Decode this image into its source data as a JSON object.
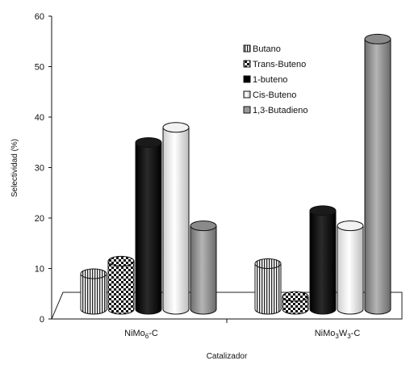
{
  "chart_data": {
    "type": "bar",
    "style": "3d-cylinder",
    "xlabel": "Catalizador",
    "ylabel": "Selectividad (%)",
    "ylim": [
      0,
      60
    ],
    "yticks": [
      "0",
      "10",
      "20",
      "30",
      "40",
      "50",
      "60"
    ],
    "grid": false,
    "legend_placement": "top-right",
    "categories": [
      {
        "main": "NiMo",
        "sub1": "6",
        "mid": "-C",
        "sub2": "",
        "tail": ""
      },
      {
        "main": "NiMo",
        "sub1": "3",
        "mid": "W",
        "sub2": "3",
        "tail": "-C"
      }
    ],
    "series": [
      {
        "name": "Butano",
        "pattern": "vertical-lines",
        "values": [
          8,
          10
        ]
      },
      {
        "name": "Trans-Buteno",
        "pattern": "checker",
        "values": [
          10.5,
          3.5
        ]
      },
      {
        "name": "1-buteno",
        "pattern": "black",
        "values": [
          34,
          20.5
        ]
      },
      {
        "name": "Cis-Buteno",
        "pattern": "white",
        "values": [
          37,
          17.5
        ]
      },
      {
        "name": "1,3-Butadieno",
        "pattern": "gray",
        "values": [
          17.5,
          54.5
        ]
      }
    ]
  }
}
